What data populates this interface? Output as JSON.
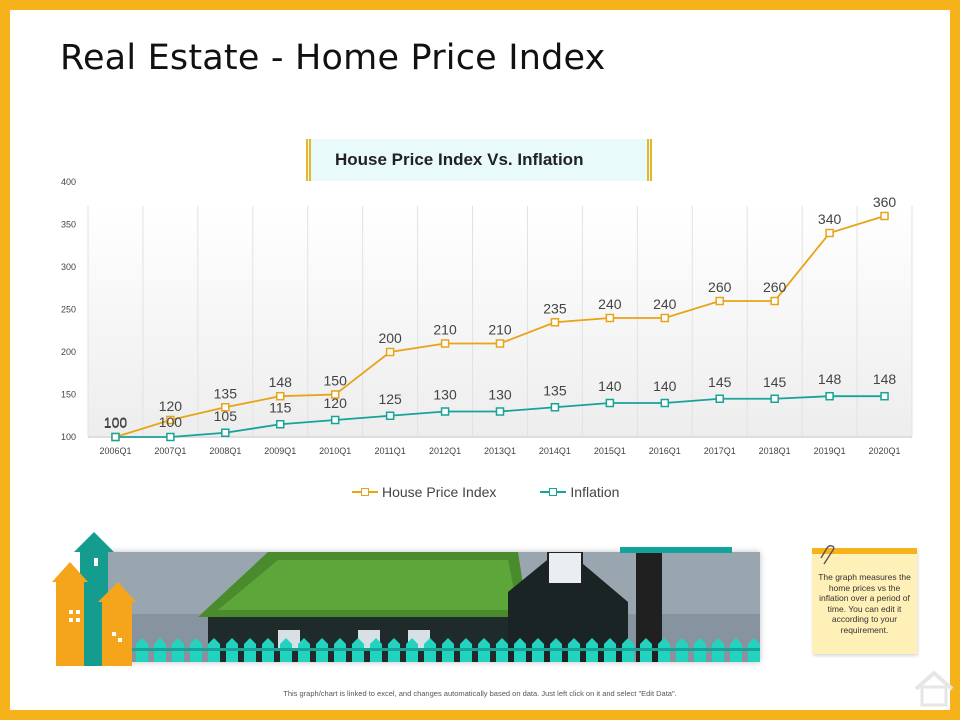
{
  "page": {
    "title": "Real Estate - Home Price Index",
    "footer": "This graph/chart is linked to excel, and changes automatically based on data. Just left click on it and select \"Edit Data\".",
    "note": "The graph measures the home prices vs the inflation over a period of time. You can edit it according to your requirement."
  },
  "colors": {
    "frame": "#F5B21B",
    "house_price_index": "#E8A317",
    "inflation": "#17A398"
  },
  "icons": [
    "paperclip-icon",
    "home-icon",
    "building-arrows-icon"
  ],
  "chart_data": {
    "type": "line",
    "title": "House Price Index Vs. Inflation",
    "categories": [
      "2006Q1",
      "2007Q1",
      "2008Q1",
      "2009Q1",
      "2010Q1",
      "2011Q1",
      "2012Q1",
      "2013Q1",
      "2014Q1",
      "2015Q1",
      "2016Q1",
      "2017Q1",
      "2018Q1",
      "2019Q1",
      "2020Q1"
    ],
    "series": [
      {
        "name": "House Price Index",
        "values": [
          100,
          120,
          135,
          148,
          150,
          200,
          210,
          210,
          235,
          240,
          240,
          260,
          260,
          340,
          360
        ]
      },
      {
        "name": "Inflation",
        "values": [
          100,
          100,
          105,
          115,
          120,
          125,
          130,
          130,
          135,
          140,
          140,
          145,
          145,
          148,
          148
        ]
      }
    ],
    "ylim": [
      100,
      400
    ],
    "yticks": [
      100,
      150,
      200,
      250,
      300,
      350,
      400
    ],
    "legend": "bottom",
    "grid": "vertical"
  }
}
